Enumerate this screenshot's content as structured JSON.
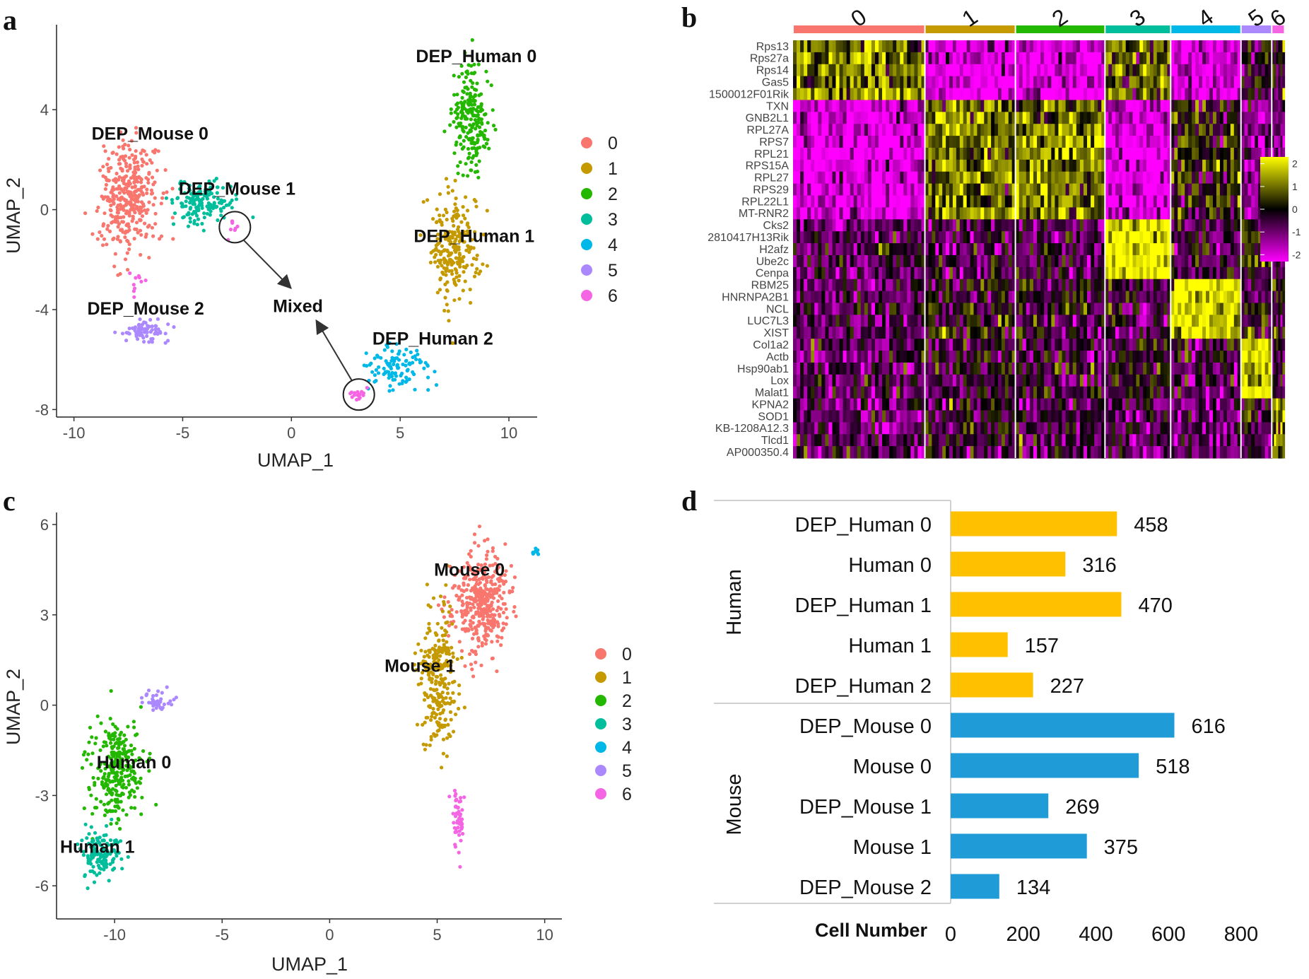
{
  "panel_labels": [
    "a",
    "b",
    "c",
    "d"
  ],
  "colors": {
    "clusters": [
      "#F8766D",
      "#C49A00",
      "#24B700",
      "#00BE9B",
      "#00B8E7",
      "#AC88FF",
      "#F564E3"
    ],
    "heat_low": "#FF00FF",
    "heat_mid": "#000000",
    "heat_high": "#FFFF00",
    "human_bar": "#FFC000",
    "mouse_bar": "#1F9BD7",
    "arrow": "#333333"
  },
  "chart_data": [
    {
      "id": "a",
      "type": "scatter",
      "xlabel": "UMAP_1",
      "ylabel": "UMAP_2",
      "xlim": [
        -10.8,
        11.3
      ],
      "ylim": [
        -8.3,
        7.4
      ],
      "xticks": [
        -10,
        -5,
        0,
        5,
        10
      ],
      "yticks": [
        4,
        0,
        -4,
        -8
      ],
      "legend": [
        "0",
        "1",
        "2",
        "3",
        "4",
        "5",
        "6"
      ],
      "legend_position": "right",
      "clusters": [
        {
          "cluster": "0",
          "label": "DEP_Mouse 0",
          "center": [
            -7.5,
            0.5
          ],
          "spread": [
            1.2,
            2.0
          ],
          "n": 360
        },
        {
          "cluster": "3",
          "label": "DEP_Mouse 1",
          "center": [
            -4.0,
            0.3
          ],
          "spread": [
            1.3,
            0.8
          ],
          "n": 150
        },
        {
          "cluster": "5",
          "label": "DEP_Mouse 2",
          "center": [
            -6.8,
            -4.9
          ],
          "spread": [
            1.0,
            0.4
          ],
          "n": 70
        },
        {
          "cluster": "2",
          "label": "DEP_Human 0",
          "center": [
            8.3,
            3.6
          ],
          "spread": [
            0.8,
            1.9
          ],
          "n": 230
        },
        {
          "cluster": "1",
          "label": "DEP_Human 1",
          "center": [
            7.5,
            -1.6
          ],
          "spread": [
            1.0,
            2.1
          ],
          "n": 230
        },
        {
          "cluster": "4",
          "label": "DEP_Human 2",
          "center": [
            4.8,
            -6.3
          ],
          "spread": [
            1.5,
            0.8
          ],
          "n": 110
        },
        {
          "cluster": "6",
          "label": "",
          "center": [
            3.0,
            -7.4
          ],
          "spread": [
            0.4,
            0.3
          ],
          "n": 16
        },
        {
          "cluster": "6",
          "label": "",
          "center": [
            -2.6,
            -0.8
          ],
          "spread": [
            0.2,
            0.3
          ],
          "n": 8
        },
        {
          "cluster": "6",
          "label": "",
          "center": [
            -7.2,
            -2.8
          ],
          "spread": [
            0.4,
            0.5
          ],
          "n": 10
        }
      ],
      "label_positions": {
        "DEP_Mouse 0": [
          -6.5,
          2.8
        ],
        "DEP_Mouse 1": [
          -2.5,
          0.6
        ],
        "DEP_Mouse 2": [
          -6.7,
          -4.2
        ],
        "DEP_Human 0": [
          8.5,
          5.9
        ],
        "DEP_Human 1": [
          8.4,
          -1.3
        ],
        "DEP_Human 2": [
          6.5,
          -5.4
        ]
      },
      "annotation": {
        "text": "Mixed",
        "position": [
          0.3,
          -4.1
        ],
        "circles": [
          [
            -2.6,
            -0.7
          ],
          [
            3.1,
            -7.4
          ]
        ]
      }
    },
    {
      "id": "b",
      "type": "heatmap",
      "clusters": [
        "0",
        "1",
        "2",
        "3",
        "4",
        "5",
        "6"
      ],
      "cluster_fractions": [
        0.287,
        0.197,
        0.195,
        0.143,
        0.153,
        0.067,
        0.028
      ],
      "genes": [
        "Rps13",
        "Rps27a",
        "Rps14",
        "Gas5",
        "1500012F01Rik",
        "TXN",
        "GNB2L1",
        "RPL27A",
        "RPS7",
        "RPL21",
        "RPS15A",
        "RPL27",
        "RPS29",
        "RPL22L1",
        "MT-RNR2",
        "Cks2",
        "2810417H13Rik",
        "H2afz",
        "Ube2c",
        "Cenpa",
        "RBM25",
        "HNRNPA2B1",
        "NCL",
        "LUC7L3",
        "XIST",
        "Col1a2",
        "Actb",
        "Hsp90ab1",
        "Lox",
        "Malat1",
        "KPNA2",
        "SOD1",
        "KB-1208A12.3",
        "Tlcd1",
        "AP000350.4"
      ],
      "gene_groups": [
        {
          "genes": [
            0,
            4
          ],
          "mean_expression": [
            1.0,
            -2.0,
            -2.0,
            0.8,
            -2.0,
            -0.3,
            -0.2
          ]
        },
        {
          "genes": [
            5,
            14
          ],
          "mean_expression": [
            -2.0,
            1.0,
            1.0,
            -2.0,
            0.2,
            -1.0,
            -1.0
          ]
        },
        {
          "genes": [
            15,
            19
          ],
          "mean_expression": [
            -0.6,
            -0.6,
            -0.6,
            2.2,
            -0.6,
            0.3,
            -0.5
          ]
        },
        {
          "genes": [
            20,
            24
          ],
          "mean_expression": [
            -0.7,
            -0.2,
            -0.3,
            -0.6,
            2.0,
            -0.5,
            -0.2
          ]
        },
        {
          "genes": [
            25,
            29
          ],
          "mean_expression": [
            -0.7,
            -0.3,
            -0.4,
            -0.2,
            -0.5,
            1.9,
            -0.3
          ]
        },
        {
          "genes": [
            30,
            34
          ],
          "mean_expression": [
            -0.8,
            -0.3,
            -0.6,
            -0.7,
            -0.8,
            -0.4,
            1.0
          ]
        }
      ],
      "colorbar": {
        "ticks": [
          "2",
          "1",
          "0",
          "-1",
          "-2"
        ],
        "range": [
          -2.3,
          2.3
        ]
      }
    },
    {
      "id": "c",
      "type": "scatter",
      "xlabel": "UMAP_1",
      "ylabel": "UMAP_2",
      "xlim": [
        -12.7,
        10.8
      ],
      "ylim": [
        -7.1,
        6.4
      ],
      "xticks": [
        -10,
        -5,
        0,
        5,
        10
      ],
      "yticks": [
        6,
        3,
        0,
        -3,
        -6
      ],
      "legend": [
        "0",
        "1",
        "2",
        "3",
        "4",
        "5",
        "6"
      ],
      "legend_position": "right",
      "clusters": [
        {
          "cluster": "0",
          "label": "Mouse 0",
          "center": [
            7.0,
            3.4
          ],
          "spread": [
            1.2,
            1.5
          ],
          "n": 400
        },
        {
          "cluster": "1",
          "label": "Mouse 1",
          "center": [
            5.0,
            0.8
          ],
          "spread": [
            0.8,
            2.2
          ],
          "n": 260
        },
        {
          "cluster": "6",
          "label": "",
          "center": [
            6.0,
            -3.8
          ],
          "spread": [
            0.25,
            0.9
          ],
          "n": 50
        },
        {
          "cluster": "2",
          "label": "Human 0",
          "center": [
            -9.9,
            -2.2
          ],
          "spread": [
            1.1,
            1.5
          ],
          "n": 280
        },
        {
          "cluster": "3",
          "label": "Human 1",
          "center": [
            -10.6,
            -5.0
          ],
          "spread": [
            0.8,
            0.8
          ],
          "n": 140
        },
        {
          "cluster": "5",
          "label": "",
          "center": [
            -8.0,
            0.1
          ],
          "spread": [
            0.6,
            0.4
          ],
          "n": 40
        },
        {
          "cluster": "4",
          "label": "",
          "center": [
            9.5,
            5.1
          ],
          "spread": [
            0.2,
            0.1
          ],
          "n": 12
        }
      ],
      "label_positions": {
        "Mouse 0": [
          6.5,
          4.3
        ],
        "Mouse 1": [
          4.2,
          1.1
        ],
        "Human 0": [
          -9.1,
          -2.1
        ],
        "Human 1": [
          -10.8,
          -4.9
        ]
      }
    },
    {
      "id": "d",
      "type": "bar",
      "orientation": "horizontal",
      "xlabel": "Cell Number",
      "xlim": [
        0,
        800
      ],
      "xticks": [
        "0",
        "200",
        "400",
        "600",
        "800"
      ],
      "groups": [
        {
          "name": "Human",
          "categories": [
            "DEP_Human 0",
            "Human 0",
            "DEP_Human 1",
            "Human 1",
            "DEP_Human 2"
          ],
          "values": [
            458,
            316,
            470,
            157,
            227
          ]
        },
        {
          "name": "Mouse",
          "categories": [
            "DEP_Mouse 0",
            "Mouse 0",
            "DEP_Mouse 1",
            "Mouse 1",
            "DEP_Mouse 2"
          ],
          "values": [
            616,
            518,
            269,
            375,
            134
          ]
        }
      ]
    }
  ]
}
